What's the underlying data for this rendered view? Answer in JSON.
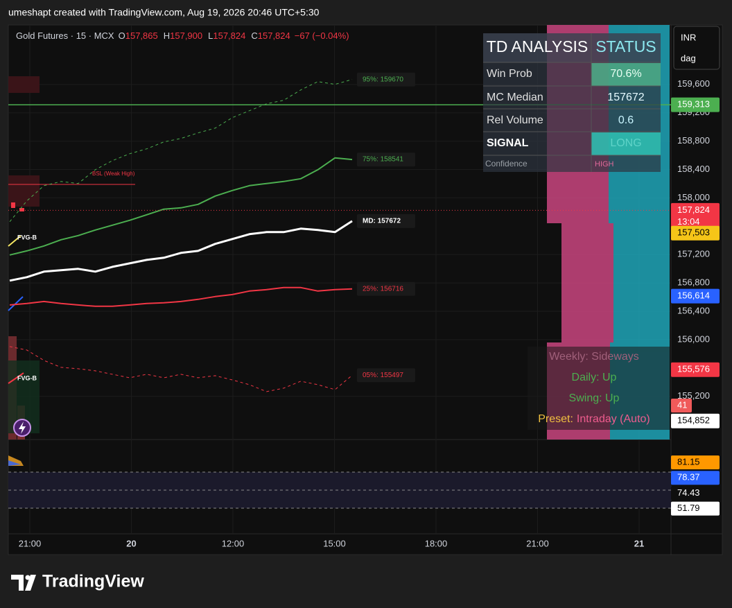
{
  "header": {
    "attribution": "umeshapt created with TradingView.com, Aug 19, 2026 20:46 UTC+5:30"
  },
  "chart_data": {
    "type": "line",
    "symbol": "Gold Futures · 15 · MCX",
    "ohlc": [
      {
        "key": "O",
        "text": "157,865"
      },
      {
        "key": "H",
        "text": "157,900"
      },
      {
        "key": "L",
        "text": "157,824"
      },
      {
        "key": "C",
        "text": "157,824"
      }
    ],
    "change": "−67 (−0.04%)",
    "currency": "INR",
    "unit": "dag",
    "ylim": [
      154610,
      160400
    ],
    "yticks": [
      {
        "value": 159600,
        "label": "159,600"
      },
      {
        "value": 159200,
        "label": "159,200"
      },
      {
        "value": 158800,
        "label": "158,800"
      },
      {
        "value": 158400,
        "label": "158,400"
      },
      {
        "value": 158000,
        "label": "158,000"
      },
      {
        "value": 157200,
        "label": "157,200"
      },
      {
        "value": 156800,
        "label": "156,800"
      },
      {
        "value": 156400,
        "label": "156,400"
      },
      {
        "value": 156000,
        "label": "156,000"
      },
      {
        "value": 155200,
        "label": "155,200"
      }
    ],
    "xticks": [
      "21:00",
      "20",
      "12:00",
      "15:00",
      "18:00",
      "21:00",
      "21"
    ],
    "series": [
      {
        "name": "95%: 159670",
        "color": "#4caf50",
        "dashed": true,
        "width": 1,
        "values": [
          157663,
          157957,
          158172,
          158231,
          158202,
          158397,
          158525,
          158622,
          158691,
          158789,
          158838,
          158916,
          158984,
          159131,
          159229,
          159327,
          159376,
          159523,
          159640,
          159601,
          159670
        ]
      },
      {
        "name": "75%: 158541",
        "color": "#4caf50",
        "dashed": false,
        "width": 2,
        "values": [
          157194,
          157252,
          157321,
          157409,
          157468,
          157546,
          157615,
          157683,
          157761,
          157840,
          157859,
          157908,
          158025,
          158104,
          158172,
          158202,
          158231,
          158270,
          158397,
          158564,
          158541
        ]
      },
      {
        "name": "MD: 157672",
        "color": "#ffffff",
        "dashed": false,
        "width": 3,
        "values": [
          156832,
          156881,
          156959,
          156979,
          156998,
          156959,
          157027,
          157076,
          157125,
          157155,
          157223,
          157252,
          157350,
          157419,
          157487,
          157517,
          157517,
          157566,
          157546,
          157517,
          157672
        ]
      },
      {
        "name": "25%: 156716",
        "color": "#f23645",
        "dashed": false,
        "width": 2,
        "values": [
          156489,
          156509,
          156538,
          156509,
          156489,
          156470,
          156470,
          156489,
          156509,
          156519,
          156538,
          156568,
          156607,
          156636,
          156685,
          156705,
          156734,
          156734,
          156685,
          156705,
          156716
        ]
      },
      {
        "name": "05%: 155497",
        "color": "#f23645",
        "dashed": true,
        "width": 1,
        "values": [
          155902,
          155853,
          155706,
          155609,
          155589,
          155560,
          155511,
          155462,
          155511,
          155462,
          155511,
          155462,
          155491,
          155432,
          155364,
          155266,
          155315,
          155413,
          155364,
          155295,
          155497
        ]
      }
    ],
    "price_badges": [
      {
        "value": 159313,
        "label": "159,313",
        "color": "#4caf50",
        "text_color": "#ffffff",
        "line": "solid"
      },
      {
        "value": 157824,
        "label": "157,824",
        "color": "#f23645",
        "text_color": "#ffffff",
        "line": "dotted",
        "countdown": "13:04"
      },
      {
        "value": 157503,
        "label": "157,503",
        "color": "#f5c518",
        "text_color": "#000000"
      },
      {
        "value": 156614,
        "label": "156,614",
        "color": "#2962ff",
        "text_color": "#ffffff"
      },
      {
        "value": 155576,
        "label": "155,576",
        "color": "#f23645",
        "text_color": "#ffffff"
      },
      {
        "value": 154852,
        "label": "154,852",
        "color": "#ffffff",
        "text_color": "#000000"
      }
    ],
    "extra_badge": "41",
    "annotations": {
      "bsl": "BSL (Weak High)",
      "fvg": [
        "FVG-B",
        "FVG-B"
      ]
    },
    "oscillator_badges": [
      {
        "label": "81.15",
        "color": "#ff9800",
        "text_color": "#000000"
      },
      {
        "label": "78.37",
        "color": "#2962ff",
        "text_color": "#ffffff"
      },
      {
        "label": "74.43",
        "color": "#0f0f0f",
        "text_color": "#ffffff"
      },
      {
        "label": "51.79",
        "color": "#ffffff",
        "text_color": "#000000"
      }
    ]
  },
  "td_table": {
    "headers": [
      "TD ANALYSIS",
      "STATUS"
    ],
    "rows": [
      [
        "Win Prob",
        "70.6%"
      ],
      [
        "MC Median",
        "157672"
      ],
      [
        "Rel Volume",
        "0.6"
      ],
      [
        "SIGNAL",
        "LONG"
      ],
      [
        "Confidence",
        "HIGH"
      ]
    ]
  },
  "trend_panel": {
    "weekly": "Weekly: Sideways",
    "daily": "Daily: Up",
    "swing": "Swing: Up",
    "preset_label": "Preset:",
    "preset_value": "Intraday (Auto)"
  },
  "footer": {
    "logo": "TradingView"
  }
}
